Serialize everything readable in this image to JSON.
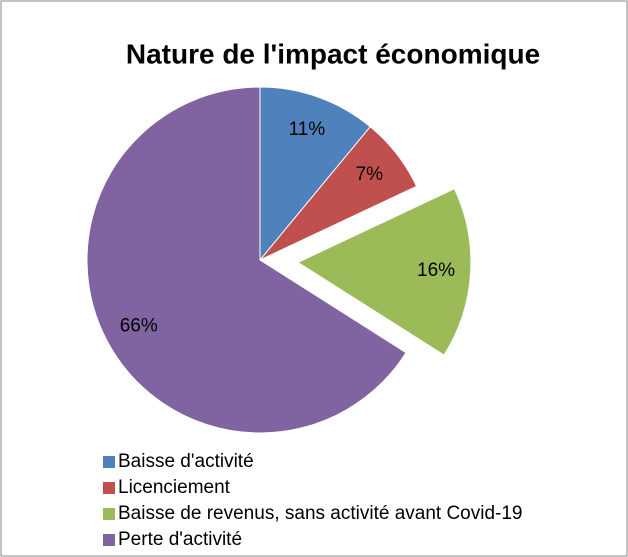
{
  "chart_data": {
    "type": "pie",
    "title": "Nature de l'impact économique",
    "categories": [
      "Baisse d'activité",
      "Licenciement",
      "Baisse de revenus, sans activité avant Covid-19",
      "Perte d'activité"
    ],
    "values": [
      11,
      7,
      16,
      66
    ],
    "value_labels": [
      "11%",
      "7%",
      "16%",
      "66%"
    ],
    "colors": [
      "#4f81bd",
      "#c0504d",
      "#9bbb59",
      "#8064a2"
    ],
    "exploded": [
      false,
      false,
      true,
      false
    ],
    "legend": "bottom"
  }
}
